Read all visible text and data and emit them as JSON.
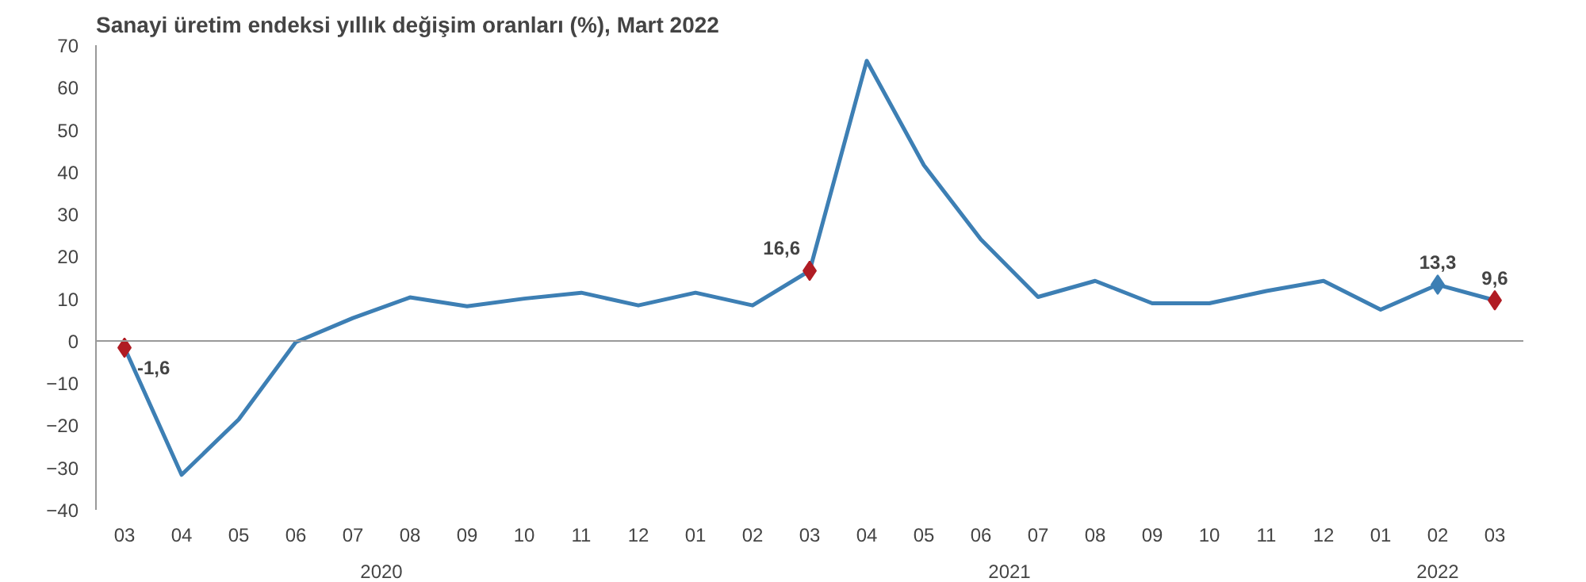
{
  "chart_data": {
    "type": "line",
    "title": "Sanayi üretim endeksi yıllık değişim oranları (%), Mart 2022",
    "categories": [
      "03",
      "04",
      "05",
      "06",
      "07",
      "08",
      "09",
      "10",
      "11",
      "12",
      "01",
      "02",
      "03",
      "04",
      "05",
      "06",
      "07",
      "08",
      "09",
      "10",
      "11",
      "12",
      "01",
      "02",
      "03"
    ],
    "annotations": [
      "2020",
      "2021",
      "2022"
    ],
    "series": [
      {
        "color": "#3d7fb4",
        "values": [
          -1.6,
          -31.7,
          -18.6,
          -0.3,
          5.4,
          10.3,
          8.2,
          10,
          11.4,
          8.4,
          11.4,
          8.4,
          16.6,
          66.3,
          41.6,
          24,
          10.4,
          14.2,
          8.9,
          8.9,
          11.8,
          14.2,
          7.4,
          13.3,
          9.6
        ]
      },
      {
        "type": "scatter",
        "marker": "diamond",
        "color": "#b01c24",
        "values": [
          -1.6,
          null,
          null,
          null,
          null,
          null,
          null,
          null,
          null,
          null,
          null,
          null,
          16.6,
          null,
          null,
          null,
          null,
          null,
          null,
          null,
          null,
          null,
          null,
          13.3,
          9.6
        ],
        "colors": [
          null,
          null,
          null,
          null,
          null,
          null,
          null,
          null,
          null,
          null,
          null,
          null,
          null,
          null,
          null,
          null,
          null,
          null,
          null,
          null,
          null,
          null,
          null,
          "#3d7fb4",
          null
        ],
        "value_labels": [
          "-1,6",
          null,
          null,
          null,
          null,
          null,
          null,
          null,
          null,
          null,
          null,
          null,
          "16,6",
          null,
          null,
          null,
          null,
          null,
          null,
          null,
          null,
          null,
          null,
          "13,3",
          "9,6"
        ]
      }
    ],
    "ylim": [
      -40,
      70
    ],
    "yticks": [
      -40,
      -30,
      -20,
      -10,
      0,
      10,
      20,
      30,
      40,
      50,
      60,
      70
    ],
    "line_style": "solid"
  }
}
